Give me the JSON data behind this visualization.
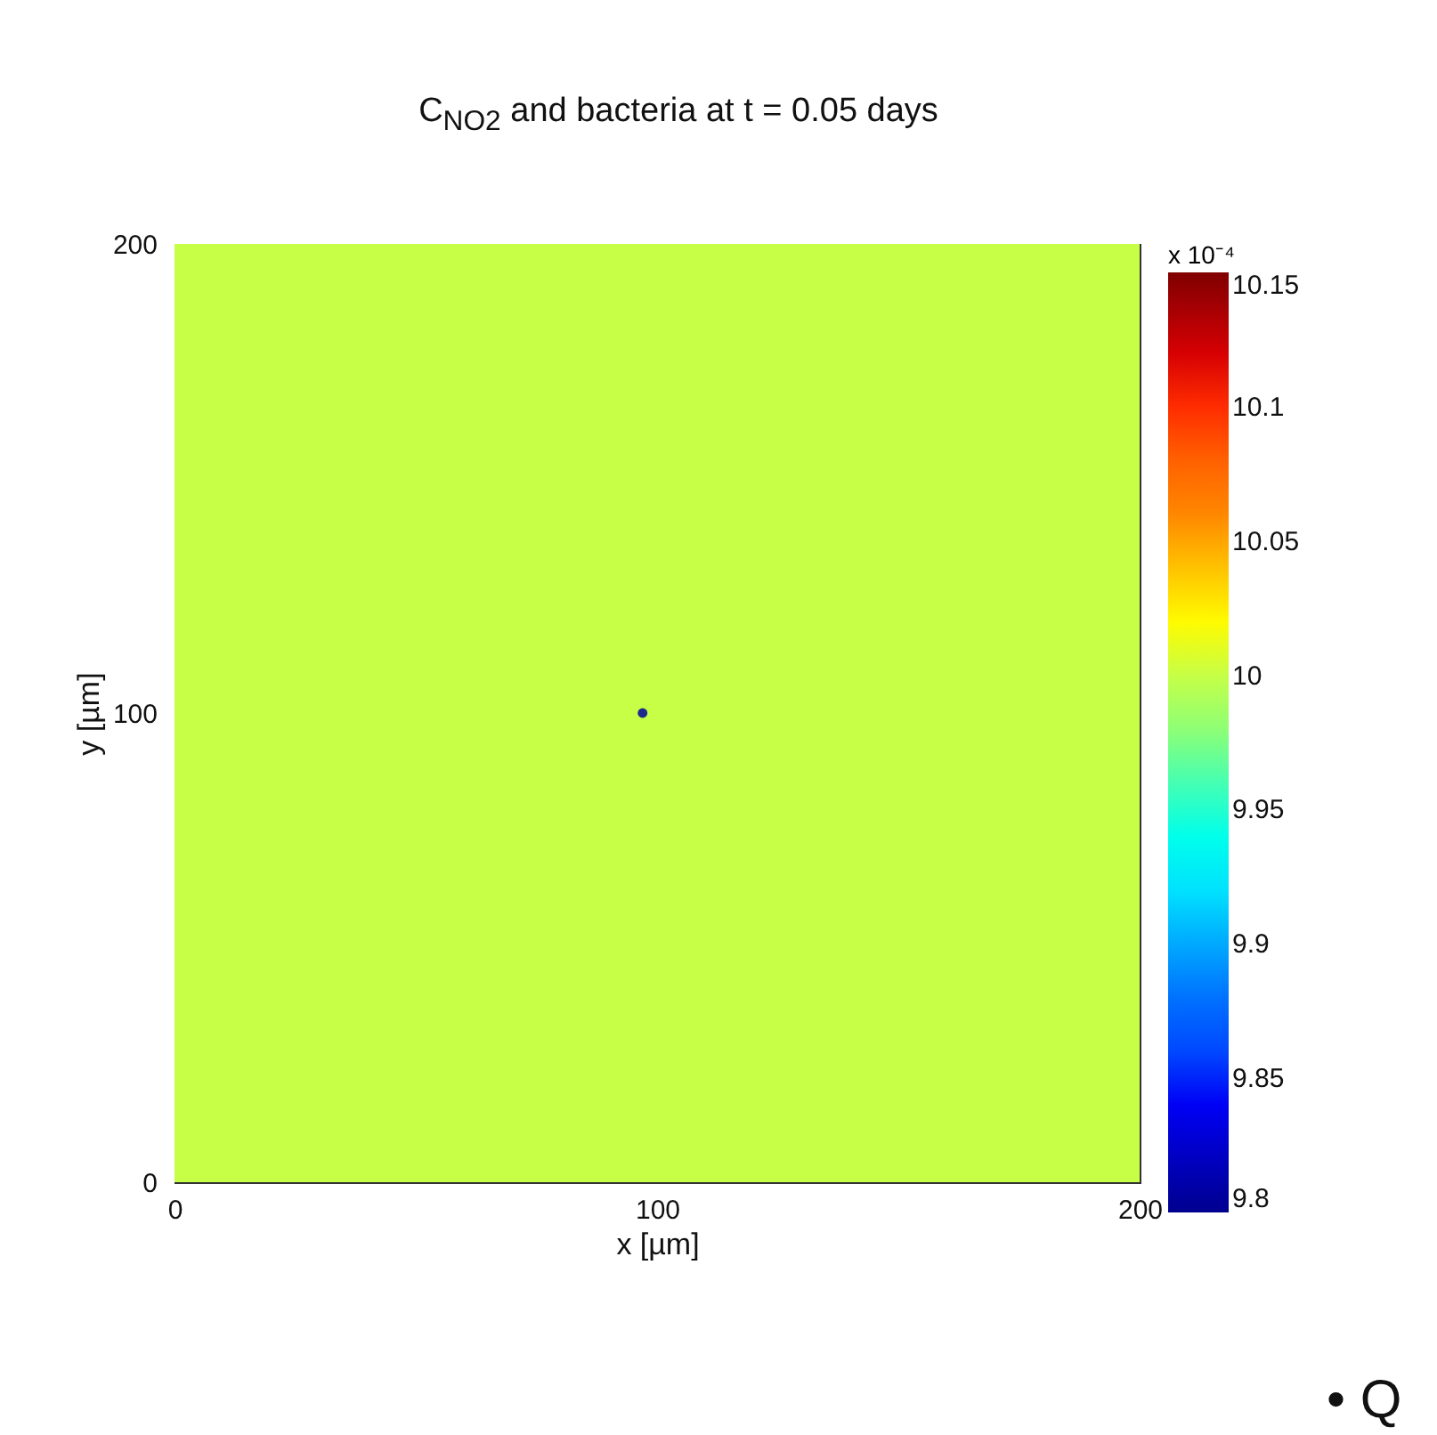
{
  "chart_data": {
    "type": "heatmap",
    "title": "C$_{NO2}$ and bacteria at  t = 0.05 days",
    "xlabel": "x [µm]",
    "ylabel": "y [µm]",
    "clabel": "x 10⁻⁴",
    "cells": [
      [
        10
      ]
    ],
    "clim": [
      9.8,
      10.15
    ],
    "cticks": [
      9.8,
      9.85,
      9.9,
      9.95,
      10,
      10.05,
      10.1,
      10.15
    ],
    "xlim": [
      0,
      200
    ],
    "xticks": [
      0,
      100,
      200
    ],
    "ylim": [
      0,
      200
    ],
    "yticks": [
      0,
      100,
      200
    ],
    "series": [
      {
        "type": "scatter",
        "color": "#1c2a8c",
        "x": [
          97
        ],
        "values": [
          100
        ]
      }
    ],
    "annotations": [
      "• Q"
    ]
  }
}
